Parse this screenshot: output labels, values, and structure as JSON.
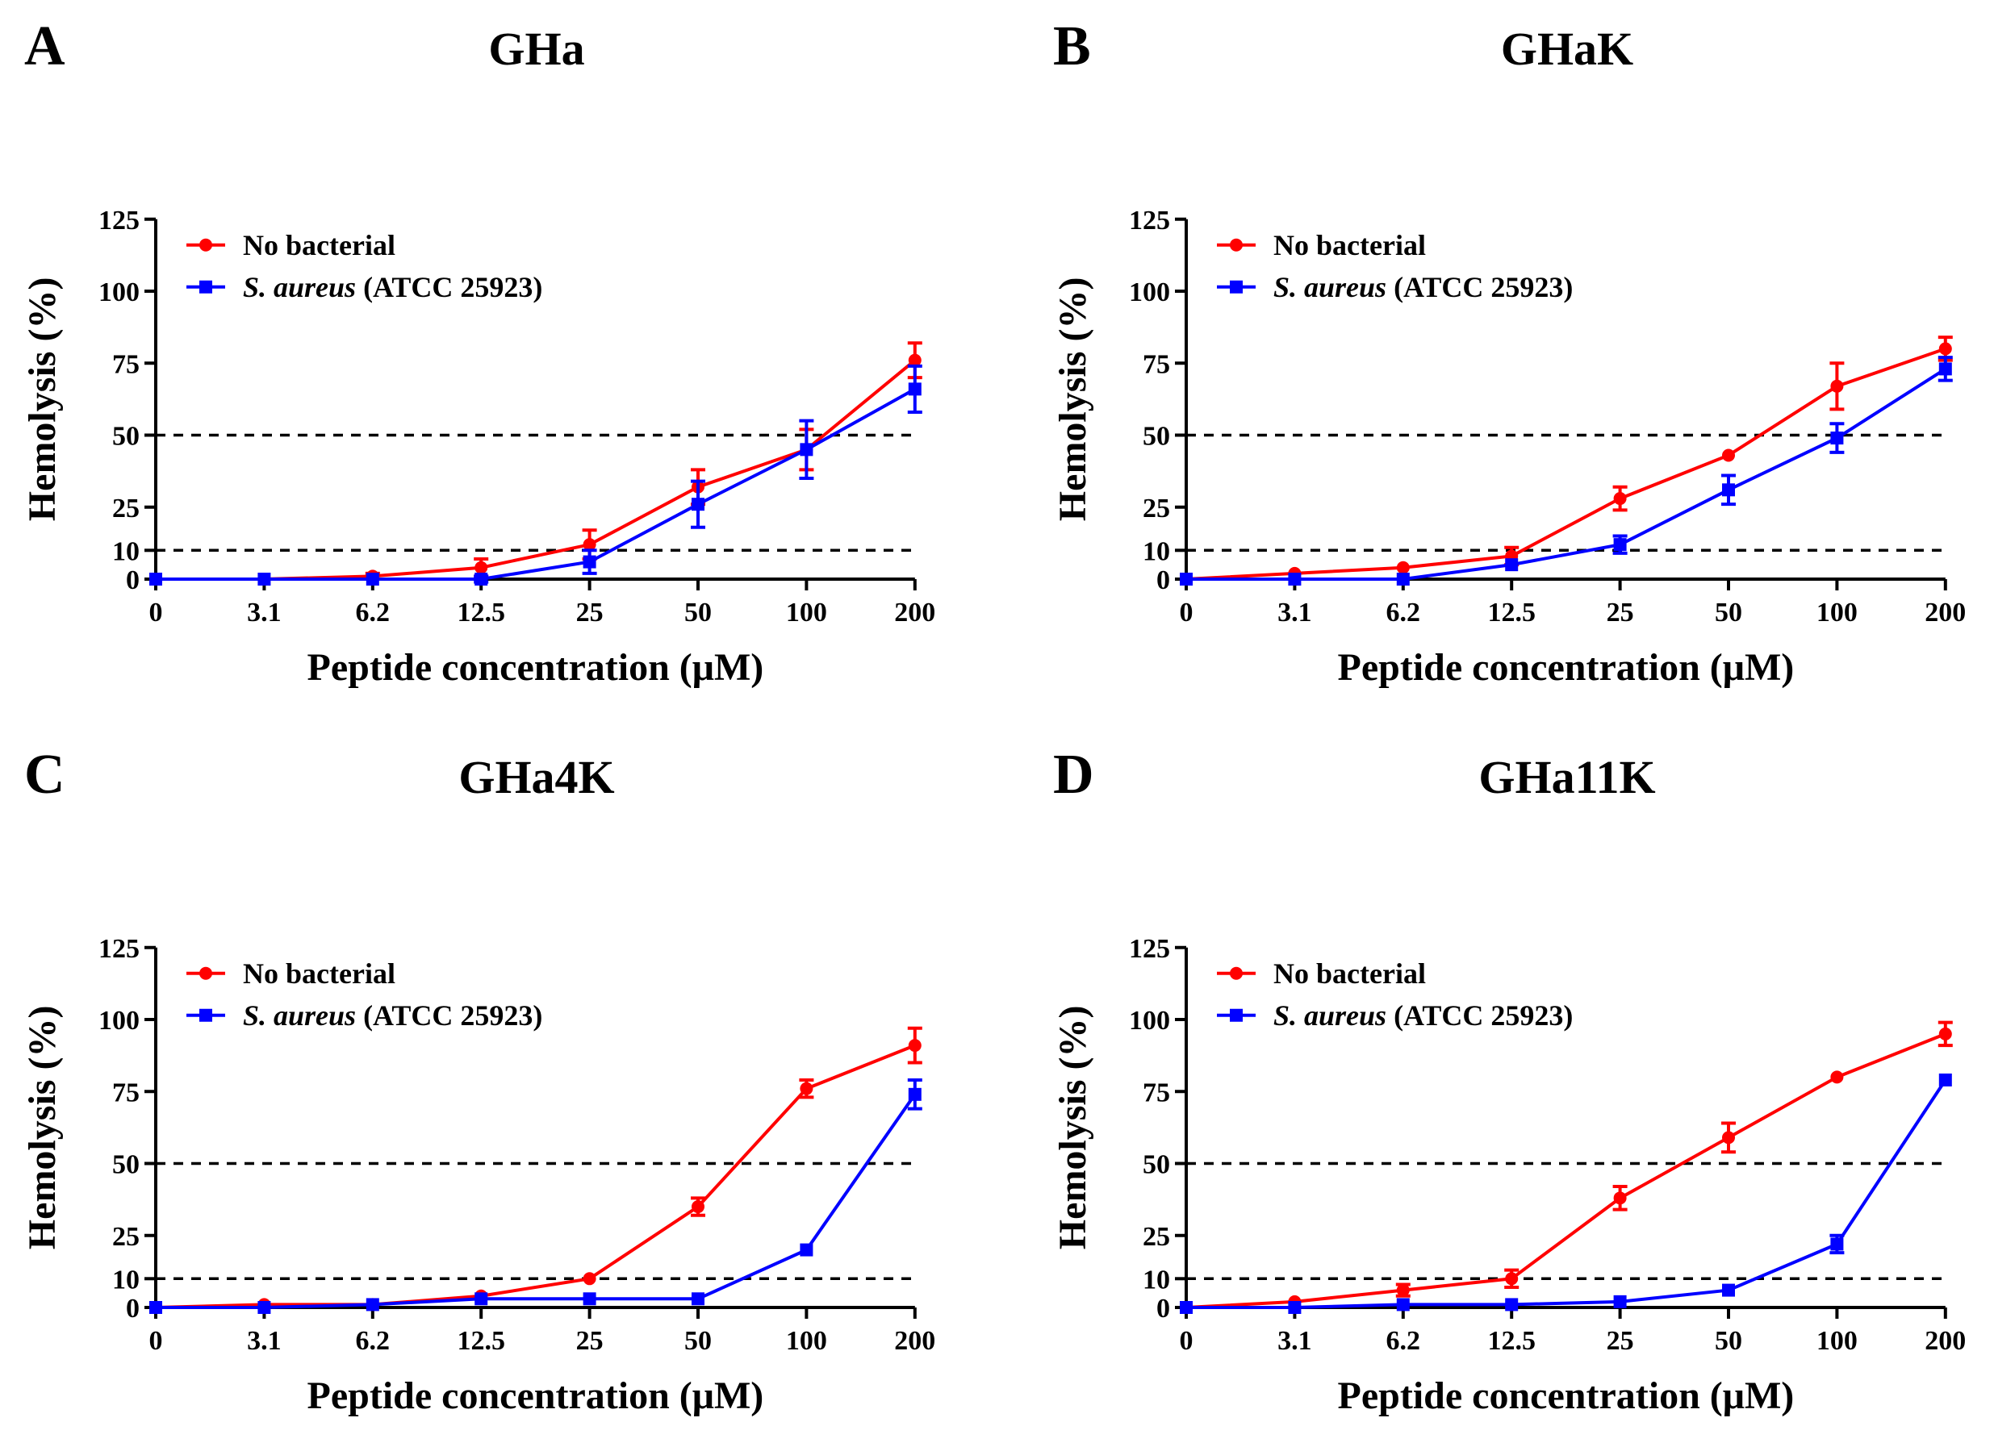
{
  "colors": {
    "no_bacterial": "#ff0000",
    "s_aureus": "#0000ff"
  },
  "chart_data": [
    {
      "type": "line",
      "panel": "A",
      "title": "GHa",
      "xlabel": "Peptide concentration (μM)",
      "ylabel": "Hemolysis (%)",
      "categories": [
        "0",
        "3.1",
        "6.2",
        "12.5",
        "25",
        "50",
        "100",
        "200"
      ],
      "yticks": [
        0,
        10,
        25,
        50,
        75,
        100,
        125
      ],
      "ylim": [
        0,
        125
      ],
      "reference_lines": [
        10,
        50
      ],
      "series": [
        {
          "name": "No bacterial",
          "marker": "circle",
          "values": [
            0,
            0,
            1,
            4,
            12,
            32,
            45,
            76
          ],
          "errors": [
            0,
            0,
            1,
            3,
            5,
            6,
            7,
            6
          ]
        },
        {
          "name": "S. aureus (ATCC 25923)",
          "name_italic": "S. aureus",
          "name_rest": " (ATCC 25923)",
          "marker": "square",
          "values": [
            0,
            0,
            0,
            0,
            6,
            26,
            45,
            66
          ],
          "errors": [
            0,
            0,
            0,
            1,
            4,
            8,
            10,
            8
          ]
        }
      ]
    },
    {
      "type": "line",
      "panel": "B",
      "title": "GHaK",
      "xlabel": "Peptide concentration (μM)",
      "ylabel": "Hemolysis (%)",
      "categories": [
        "0",
        "3.1",
        "6.2",
        "12.5",
        "25",
        "50",
        "100",
        "200"
      ],
      "yticks": [
        0,
        10,
        25,
        50,
        75,
        100,
        125
      ],
      "ylim": [
        0,
        125
      ],
      "reference_lines": [
        10,
        50
      ],
      "series": [
        {
          "name": "No bacterial",
          "marker": "circle",
          "values": [
            0,
            2,
            4,
            8,
            28,
            43,
            67,
            80
          ],
          "errors": [
            0,
            0,
            0,
            3,
            4,
            0,
            8,
            4
          ]
        },
        {
          "name": "S. aureus (ATCC 25923)",
          "name_italic": "S. aureus",
          "name_rest": " (ATCC 25923)",
          "marker": "square",
          "values": [
            0,
            0,
            0,
            5,
            12,
            31,
            49,
            73
          ],
          "errors": [
            0,
            0,
            0,
            0,
            3,
            5,
            5,
            4
          ]
        }
      ]
    },
    {
      "type": "line",
      "panel": "C",
      "title": "GHa4K",
      "xlabel": "Peptide concentration (μM)",
      "ylabel": "Hemolysis (%)",
      "categories": [
        "0",
        "3.1",
        "6.2",
        "12.5",
        "25",
        "50",
        "100",
        "200"
      ],
      "yticks": [
        0,
        10,
        25,
        50,
        75,
        100,
        125
      ],
      "ylim": [
        0,
        125
      ],
      "reference_lines": [
        10,
        50
      ],
      "series": [
        {
          "name": "No bacterial",
          "marker": "circle",
          "values": [
            0,
            1,
            1,
            4,
            10,
            35,
            76,
            91
          ],
          "errors": [
            0,
            0,
            0,
            0,
            0,
            3,
            3,
            6
          ]
        },
        {
          "name": "S. aureus (ATCC 25923)",
          "name_italic": "S. aureus",
          "name_rest": " (ATCC 25923)",
          "marker": "square",
          "values": [
            0,
            0,
            1,
            3,
            3,
            3,
            20,
            74
          ],
          "errors": [
            0,
            0,
            0,
            0,
            0,
            0,
            0,
            5
          ]
        }
      ]
    },
    {
      "type": "line",
      "panel": "D",
      "title": "GHa11K",
      "xlabel": "Peptide concentration (μM)",
      "ylabel": "Hemolysis (%)",
      "categories": [
        "0",
        "3.1",
        "6.2",
        "12.5",
        "25",
        "50",
        "100",
        "200"
      ],
      "yticks": [
        0,
        10,
        25,
        50,
        75,
        100,
        125
      ],
      "ylim": [
        0,
        125
      ],
      "reference_lines": [
        10,
        50
      ],
      "series": [
        {
          "name": "No bacterial",
          "marker": "circle",
          "values": [
            0,
            2,
            6,
            10,
            38,
            59,
            80,
            95
          ],
          "errors": [
            0,
            0,
            2,
            3,
            4,
            5,
            0,
            4
          ]
        },
        {
          "name": "S. aureus (ATCC 25923)",
          "name_italic": "S. aureus",
          "name_rest": " (ATCC 25923)",
          "marker": "square",
          "values": [
            0,
            0,
            1,
            1,
            2,
            6,
            22,
            79
          ],
          "errors": [
            0,
            0,
            0,
            0,
            0,
            0,
            3,
            0
          ]
        }
      ]
    }
  ]
}
